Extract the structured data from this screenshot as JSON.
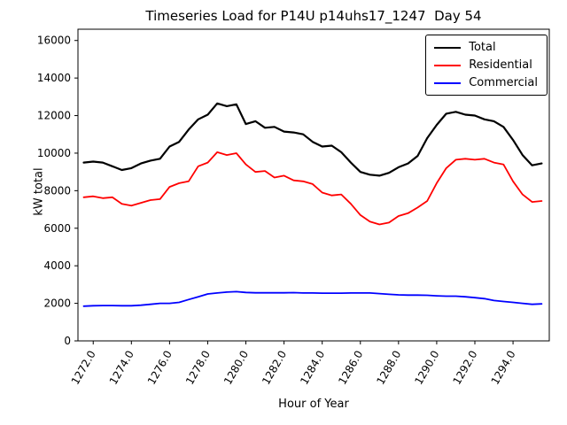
{
  "figure": {
    "title": "Timeseries Load for P14U p14uhs17_1247  Day 54",
    "xlabel": "Hour of Year",
    "ylabel": "kW total"
  },
  "chart_data": {
    "type": "line",
    "title": "Timeseries Load for P14U p14uhs17_1247  Day 54",
    "xlabel": "Hour of Year",
    "ylabel": "kW total",
    "grid": false,
    "legend_position": "upper right",
    "xlim": [
      1271.2,
      1295.9
    ],
    "ylim": [
      0,
      16600
    ],
    "yticks": [
      0,
      2000,
      4000,
      6000,
      8000,
      10000,
      12000,
      14000,
      16000
    ],
    "xtick_values": [
      1272,
      1274,
      1276,
      1278,
      1280,
      1282,
      1284,
      1286,
      1288,
      1290,
      1292,
      1294
    ],
    "xtick_labels": [
      "1272.0",
      "1274.0",
      "1276.0",
      "1278.0",
      "1280.0",
      "1282.0",
      "1284.0",
      "1286.0",
      "1288.0",
      "1290.0",
      "1292.0",
      "1294.0"
    ],
    "x": [
      1271.5,
      1272.0,
      1272.5,
      1273.0,
      1273.5,
      1274.0,
      1274.5,
      1275.0,
      1275.5,
      1276.0,
      1276.5,
      1277.0,
      1277.5,
      1278.0,
      1278.5,
      1279.0,
      1279.5,
      1280.0,
      1280.5,
      1281.0,
      1281.5,
      1282.0,
      1282.5,
      1283.0,
      1283.5,
      1284.0,
      1284.5,
      1285.0,
      1285.5,
      1286.0,
      1286.5,
      1287.0,
      1287.5,
      1288.0,
      1288.5,
      1289.0,
      1289.5,
      1290.0,
      1290.5,
      1291.0,
      1291.5,
      1292.0,
      1292.5,
      1293.0,
      1293.5,
      1294.0,
      1294.5,
      1295.0,
      1295.5
    ],
    "series": [
      {
        "name": "Total",
        "color": "#000000",
        "width": 2.2,
        "values": [
          9500,
          9550,
          9500,
          9300,
          9100,
          9200,
          9450,
          9600,
          9700,
          10350,
          10600,
          11250,
          11800,
          12050,
          12650,
          12500,
          12600,
          11550,
          11700,
          11350,
          11400,
          11150,
          11100,
          11000,
          10600,
          10350,
          10400,
          10050,
          9500,
          9000,
          8850,
          8800,
          8950,
          9250,
          9450,
          9850,
          10800,
          11500,
          12100,
          12200,
          12050,
          12000,
          11800,
          11700,
          11400,
          10700,
          9900,
          9350,
          9450
        ]
      },
      {
        "name": "Residential",
        "color": "#ff0000",
        "width": 1.8,
        "values": [
          7650,
          7700,
          7600,
          7650,
          7300,
          7200,
          7350,
          7500,
          7550,
          8200,
          8400,
          8500,
          9300,
          9500,
          10050,
          9900,
          10000,
          9400,
          9000,
          9050,
          8700,
          8800,
          8550,
          8500,
          8350,
          7900,
          7750,
          7800,
          7300,
          6700,
          6350,
          6200,
          6300,
          6650,
          6800,
          7100,
          7450,
          8400,
          9200,
          9650,
          9700,
          9650,
          9700,
          9500,
          9400,
          8500,
          7800,
          7400,
          7450
        ]
      },
      {
        "name": "Commercial",
        "color": "#0000ff",
        "width": 1.8,
        "values": [
          1850,
          1870,
          1880,
          1880,
          1870,
          1870,
          1900,
          1950,
          2000,
          2000,
          2050,
          2200,
          2350,
          2500,
          2550,
          2600,
          2620,
          2580,
          2560,
          2560,
          2560,
          2560,
          2570,
          2550,
          2550,
          2540,
          2540,
          2540,
          2550,
          2550,
          2550,
          2520,
          2480,
          2450,
          2440,
          2440,
          2430,
          2400,
          2380,
          2380,
          2350,
          2300,
          2250,
          2150,
          2100,
          2050,
          2000,
          1950,
          1970
        ]
      }
    ]
  }
}
